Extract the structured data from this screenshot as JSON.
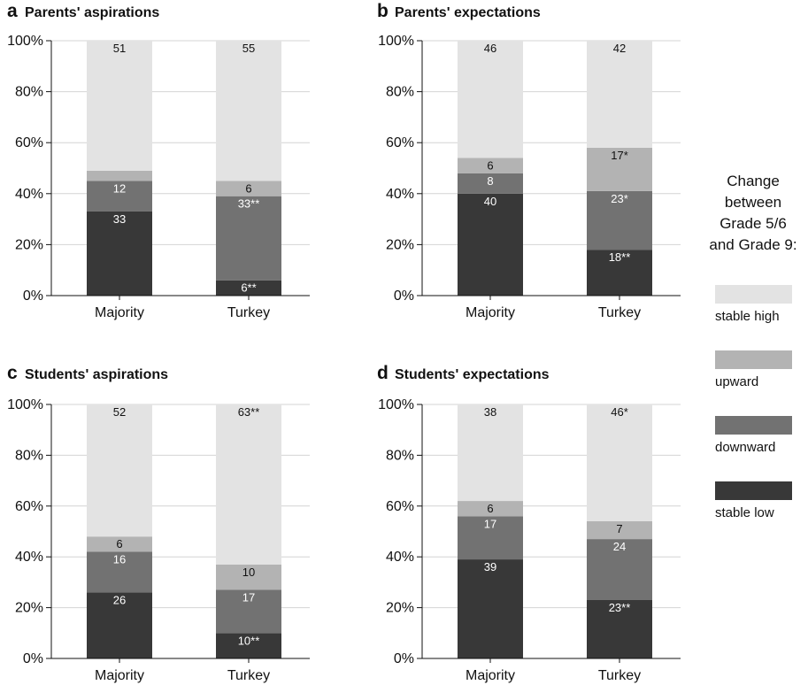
{
  "colors": {
    "stable_high": "#e3e3e3",
    "upward": "#b3b3b3",
    "downward": "#727272",
    "stable_low": "#383838",
    "grid": "#d4d4d4",
    "axis": "#111111"
  },
  "legend": {
    "title": [
      "Change",
      "between",
      "Grade 5/6",
      "and Grade 9:"
    ],
    "items": [
      {
        "key": "stable_high",
        "label": "stable high"
      },
      {
        "key": "upward",
        "label": "upward"
      },
      {
        "key": "downward",
        "label": "downward"
      },
      {
        "key": "stable_low",
        "label": "stable low"
      }
    ]
  },
  "chart_data": [
    {
      "type": "bar",
      "stacked": true,
      "panel": "a",
      "title": "Parents' aspirations",
      "categories": [
        "Majority",
        "Turkey"
      ],
      "yticks": [
        "0%",
        "20%",
        "40%",
        "60%",
        "80%",
        "100%"
      ],
      "ylim": [
        0,
        100
      ],
      "grid": true,
      "series": [
        {
          "name": "stable low",
          "key": "stable_low",
          "values": [
            33,
            6
          ],
          "labels": [
            "33",
            "6**"
          ]
        },
        {
          "name": "downward",
          "key": "downward",
          "values": [
            12,
            33
          ],
          "labels": [
            "12",
            "33**"
          ]
        },
        {
          "name": "upward",
          "key": "upward",
          "values": [
            4,
            6
          ],
          "labels": [
            "",
            "6"
          ]
        },
        {
          "name": "stable high",
          "key": "stable_high",
          "values": [
            51,
            55
          ],
          "labels": [
            "51",
            "55"
          ]
        }
      ]
    },
    {
      "type": "bar",
      "stacked": true,
      "panel": "b",
      "title": "Parents' expectations",
      "categories": [
        "Majority",
        "Turkey"
      ],
      "yticks": [
        "0%",
        "20%",
        "40%",
        "60%",
        "80%",
        "100%"
      ],
      "ylim": [
        0,
        100
      ],
      "grid": true,
      "series": [
        {
          "name": "stable low",
          "key": "stable_low",
          "values": [
            40,
            18
          ],
          "labels": [
            "40",
            "18**"
          ]
        },
        {
          "name": "downward",
          "key": "downward",
          "values": [
            8,
            23
          ],
          "labels": [
            "8",
            "23*"
          ]
        },
        {
          "name": "upward",
          "key": "upward",
          "values": [
            6,
            17
          ],
          "labels": [
            "6",
            "17*"
          ]
        },
        {
          "name": "stable high",
          "key": "stable_high",
          "values": [
            46,
            42
          ],
          "labels": [
            "46",
            "42"
          ]
        }
      ]
    },
    {
      "type": "bar",
      "stacked": true,
      "panel": "c",
      "title": "Students' aspirations",
      "categories": [
        "Majority",
        "Turkey"
      ],
      "yticks": [
        "0%",
        "20%",
        "40%",
        "60%",
        "80%",
        "100%"
      ],
      "ylim": [
        0,
        100
      ],
      "grid": true,
      "series": [
        {
          "name": "stable low",
          "key": "stable_low",
          "values": [
            26,
            10
          ],
          "labels": [
            "26",
            "10**"
          ]
        },
        {
          "name": "downward",
          "key": "downward",
          "values": [
            16,
            17
          ],
          "labels": [
            "16",
            "17"
          ]
        },
        {
          "name": "upward",
          "key": "upward",
          "values": [
            6,
            10
          ],
          "labels": [
            "6",
            "10"
          ]
        },
        {
          "name": "stable high",
          "key": "stable_high",
          "values": [
            52,
            63
          ],
          "labels": [
            "52",
            "63**"
          ]
        }
      ]
    },
    {
      "type": "bar",
      "stacked": true,
      "panel": "d",
      "title": "Students' expectations",
      "categories": [
        "Majority",
        "Turkey"
      ],
      "yticks": [
        "0%",
        "20%",
        "40%",
        "60%",
        "80%",
        "100%"
      ],
      "ylim": [
        0,
        100
      ],
      "grid": true,
      "series": [
        {
          "name": "stable low",
          "key": "stable_low",
          "values": [
            39,
            23
          ],
          "labels": [
            "39",
            "23**"
          ]
        },
        {
          "name": "downward",
          "key": "downward",
          "values": [
            17,
            24
          ],
          "labels": [
            "17",
            "24"
          ]
        },
        {
          "name": "upward",
          "key": "upward",
          "values": [
            6,
            7
          ],
          "labels": [
            "6",
            "7"
          ]
        },
        {
          "name": "stable high",
          "key": "stable_high",
          "values": [
            38,
            46
          ],
          "labels": [
            "38",
            "46*"
          ]
        }
      ]
    }
  ]
}
